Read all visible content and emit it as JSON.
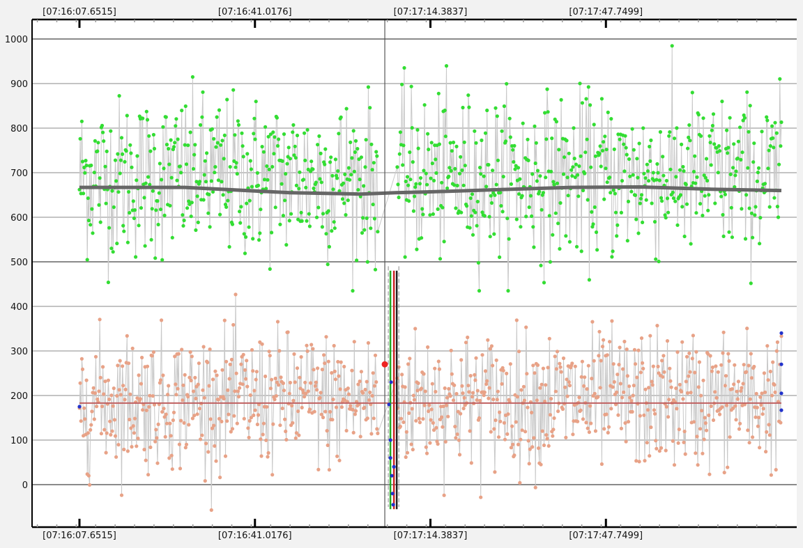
{
  "chart_data": {
    "type": "scatter",
    "title": "",
    "xlabel": "",
    "ylabel": "",
    "ylim": [
      -100,
      1040
    ],
    "xlim": [
      -0.42,
      1.03
    ],
    "y_ticks": [
      0,
      100,
      200,
      300,
      400,
      500,
      600,
      700,
      800,
      900,
      1000
    ],
    "y_tick_labels": [
      "0",
      "100",
      "200",
      "300",
      "400",
      "500",
      "600",
      "700",
      "800",
      "900",
      "1000"
    ],
    "time_ticks": [
      {
        "label": "[07:16:07.6515]",
        "x": 0.0
      },
      {
        "label": "[07:16:41.0176]",
        "x": 0.25
      },
      {
        "label": "[07:17:14.3837]",
        "x": 0.5
      },
      {
        "label": "[07:17:47.7499]",
        "x": 0.75
      }
    ],
    "grid": true,
    "legend": "none",
    "series": [
      {
        "color": "#33dd33",
        "line_color": "#c8c8c8",
        "mean": 690,
        "spread": 90,
        "min": 435,
        "max": 1003,
        "point_count": 900,
        "trend": [
          [
            0.0,
            667
          ],
          [
            0.15,
            667
          ],
          [
            0.3,
            655
          ],
          [
            0.4,
            652
          ],
          [
            0.45,
            655
          ],
          [
            0.5,
            657
          ],
          [
            0.6,
            662
          ],
          [
            0.7,
            667
          ],
          [
            0.8,
            668
          ],
          [
            0.9,
            663
          ],
          [
            1.0,
            660
          ]
        ],
        "trend_color": "#666666"
      },
      {
        "color": "#e8a287",
        "line_color": "#c8c8c8",
        "mean": 190,
        "spread": 75,
        "min": -57,
        "max": 450,
        "point_count": 900,
        "trend": [
          [
            0.0,
            183
          ],
          [
            1.0,
            183
          ]
        ],
        "trend_color": "#c06060"
      }
    ],
    "cursor_x": 0.435,
    "marker": {
      "x": 0.435,
      "y": 270,
      "color": "#ee2222"
    },
    "event_markers": [
      {
        "x": 0.443,
        "color": "#22aa22"
      },
      {
        "x": 0.448,
        "color": "#cc2222"
      },
      {
        "x": 0.452,
        "color": "#222222"
      }
    ],
    "blue_points": [
      {
        "x": 0.443,
        "y": 100
      },
      {
        "x": 0.443,
        "y": 60
      },
      {
        "x": 0.445,
        "y": 20
      },
      {
        "x": 0.446,
        "y": -20
      },
      {
        "x": 0.447,
        "y": -45
      },
      {
        "x": 0.444,
        "y": 230
      },
      {
        "x": 0.448,
        "y": 40
      },
      {
        "x": 0.441,
        "y": 180
      },
      {
        "x": 0.0,
        "y": 175
      },
      {
        "x": 1.0,
        "y": 340
      },
      {
        "x": 1.0,
        "y": 270
      },
      {
        "x": 1.0,
        "y": 205
      },
      {
        "x": 1.0,
        "y": 167
      }
    ]
  }
}
